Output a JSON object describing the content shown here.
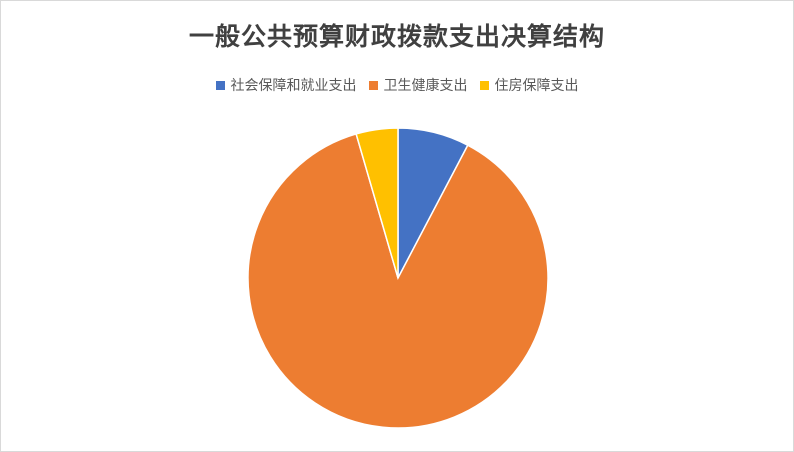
{
  "chart_data": {
    "type": "pie",
    "title": "一般公共预算财政拨款支出决算结构",
    "legend_position": "top",
    "categories": [
      "社会保障和就业支出",
      "卫生健康支出",
      "住房保障支出"
    ],
    "values": [
      7.7,
      87.8,
      4.5
    ],
    "colors": [
      "#4472C4",
      "#ED7D31",
      "#FFC000"
    ]
  }
}
